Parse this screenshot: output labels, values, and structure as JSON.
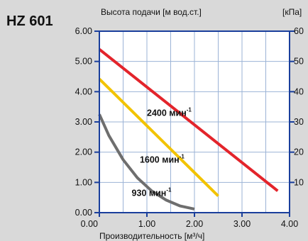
{
  "model": "HZ 601",
  "colors": {
    "background": "#d9d9d9",
    "plot_area": "#ffffff",
    "frame": "#1a3f9c",
    "grid": "#9bb3d6",
    "tick_mark": "#1a3f9c"
  },
  "chart_data": {
    "type": "line",
    "title": "HZ 601",
    "xlabel": "Производительность [м³/ч]",
    "ylabel_left": "Высота подачи [м вод.ст.]",
    "ylabel_right": "[кПа]",
    "xlim": [
      0,
      4
    ],
    "ylim_left": [
      0,
      6
    ],
    "ylim_right": [
      0,
      60
    ],
    "x_ticks": [
      "0.00",
      "1.00",
      "2.00",
      "3.00",
      "4.00"
    ],
    "y_ticks_left": [
      "0.00",
      "1.00",
      "2.00",
      "3.00",
      "4.00",
      "5.00",
      "6.00"
    ],
    "y_ticks_right": [
      "10",
      "20",
      "30",
      "40",
      "50",
      "60"
    ],
    "grid": true,
    "series": [
      {
        "name": "2400 мин-1",
        "label_main": "2400 мин",
        "label_sup": "-1",
        "label_at": [
          1.0,
          3.2
        ],
        "color": "#e3242b",
        "x": [
          0.0,
          3.75
        ],
        "y": [
          5.4,
          0.72
        ]
      },
      {
        "name": "1600 мин-1",
        "label_main": "1600 мин",
        "label_sup": "-1",
        "label_at": [
          0.85,
          1.65
        ],
        "color": "#f2c300",
        "x": [
          0.0,
          2.5
        ],
        "y": [
          4.42,
          0.55
        ]
      },
      {
        "name": "930 мин-1",
        "label_main": "930 мин",
        "label_sup": "-1",
        "label_at": [
          0.68,
          0.55
        ],
        "color": "#6e6e6e",
        "x": [
          0.0,
          0.2,
          0.5,
          0.8,
          1.1,
          1.4,
          1.7,
          2.0
        ],
        "y": [
          3.25,
          2.55,
          1.75,
          1.15,
          0.72,
          0.42,
          0.22,
          0.12
        ]
      }
    ]
  }
}
